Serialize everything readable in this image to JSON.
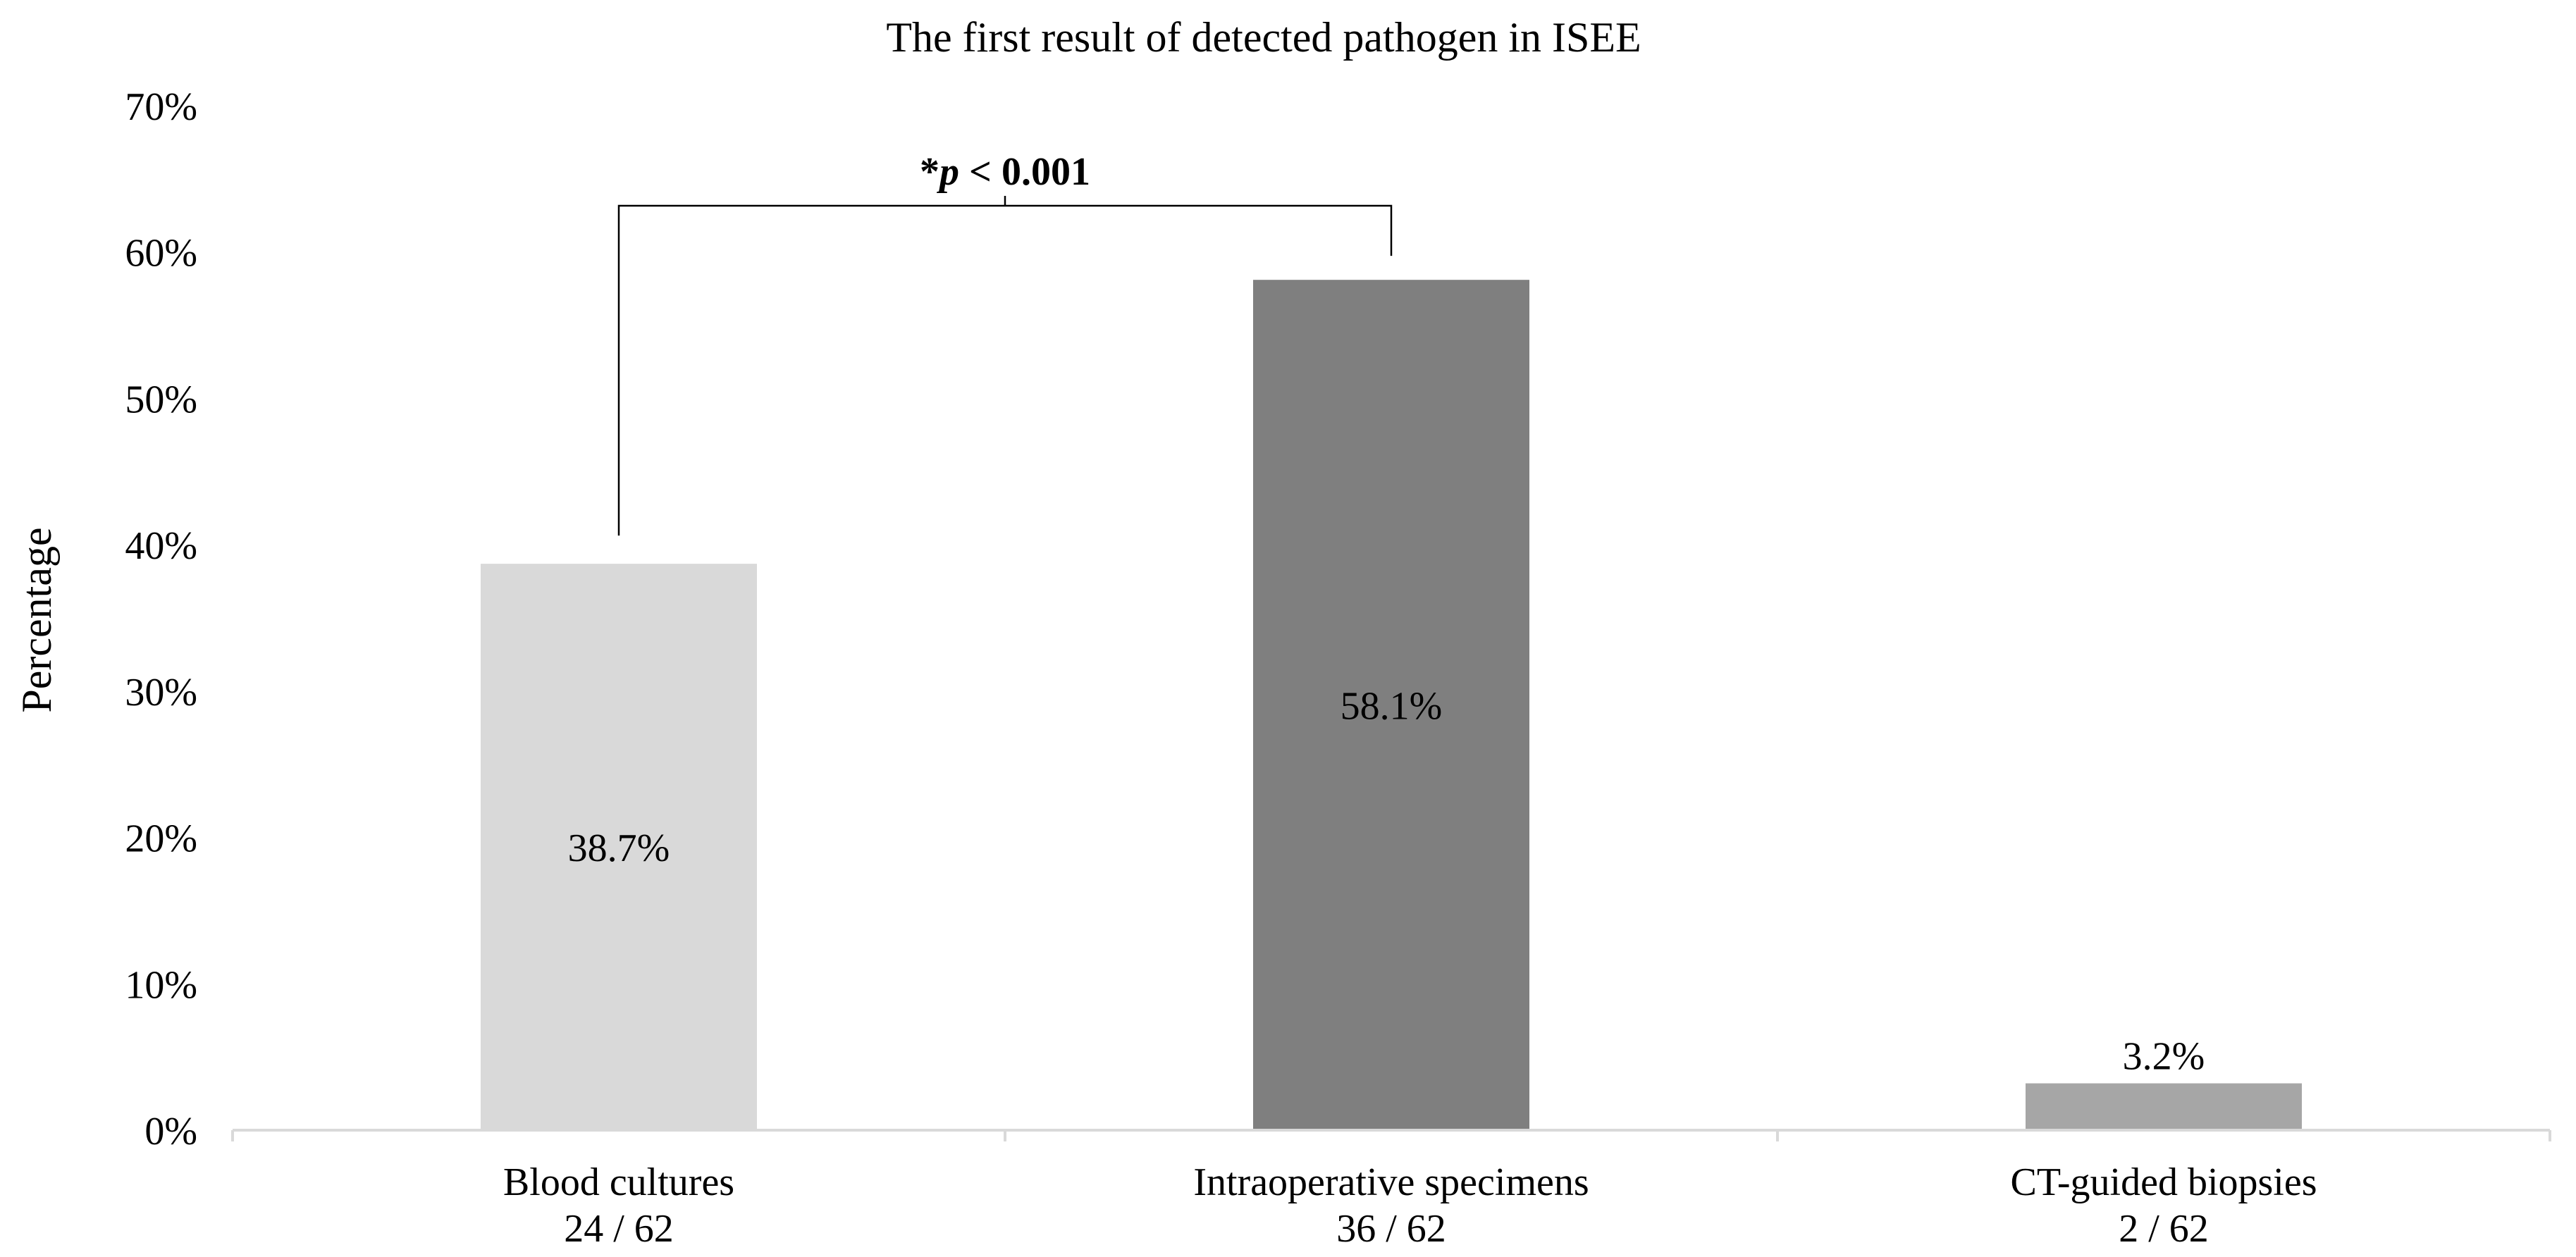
{
  "chart_data": {
    "type": "bar",
    "title": "The first result of detected pathogen in ISEE",
    "xlabel": "",
    "ylabel": "Percentage",
    "ylim": [
      0,
      70
    ],
    "yticks": [
      0,
      10,
      20,
      30,
      40,
      50,
      60,
      70
    ],
    "ytick_labels": [
      "0%",
      "10%",
      "20%",
      "30%",
      "40%",
      "50%",
      "60%",
      "70%"
    ],
    "grid": false,
    "legend": "none",
    "categories": [
      "Blood cultures",
      "Intraoperative specimens",
      "CT-guided biopsies"
    ],
    "category_counts": [
      "24 / 62",
      "36 / 62",
      "2 / 62"
    ],
    "values": [
      38.7,
      58.1,
      3.2
    ],
    "value_labels": [
      "38.7%",
      "58.1%",
      "3.2%"
    ],
    "colors": [
      "#d9d9d9",
      "#7f7f7f",
      "#a6a6a6"
    ],
    "annotation": {
      "star": "*",
      "p_symbol": "p",
      "rest": " < 0.001",
      "between": [
        0,
        1
      ]
    }
  }
}
